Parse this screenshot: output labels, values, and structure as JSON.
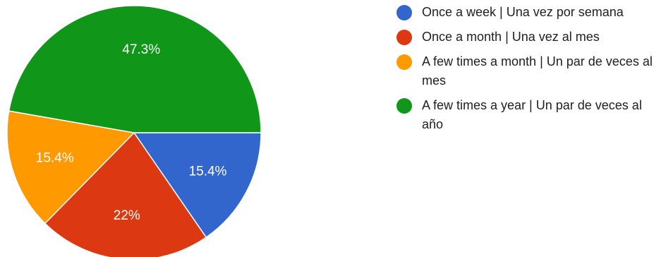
{
  "chart_data": {
    "type": "pie",
    "slices": [
      {
        "name": "Once a week | Una vez por semana",
        "value": 15.4,
        "label": "15.4%",
        "color": "#3366cc"
      },
      {
        "name": "Once a month | Una vez al mes",
        "value": 22,
        "label": "22%",
        "color": "#dc3912"
      },
      {
        "name": "A few times a month | Un par de veces al mes",
        "value": 15.4,
        "label": "15.4%",
        "color": "#ff9900"
      },
      {
        "name": "A few times a year | Un par de veces al año",
        "value": 47.3,
        "label": "47.3%",
        "color": "#109618"
      }
    ],
    "legend_position": "right",
    "start_direction": "east",
    "direction": "clockwise"
  }
}
